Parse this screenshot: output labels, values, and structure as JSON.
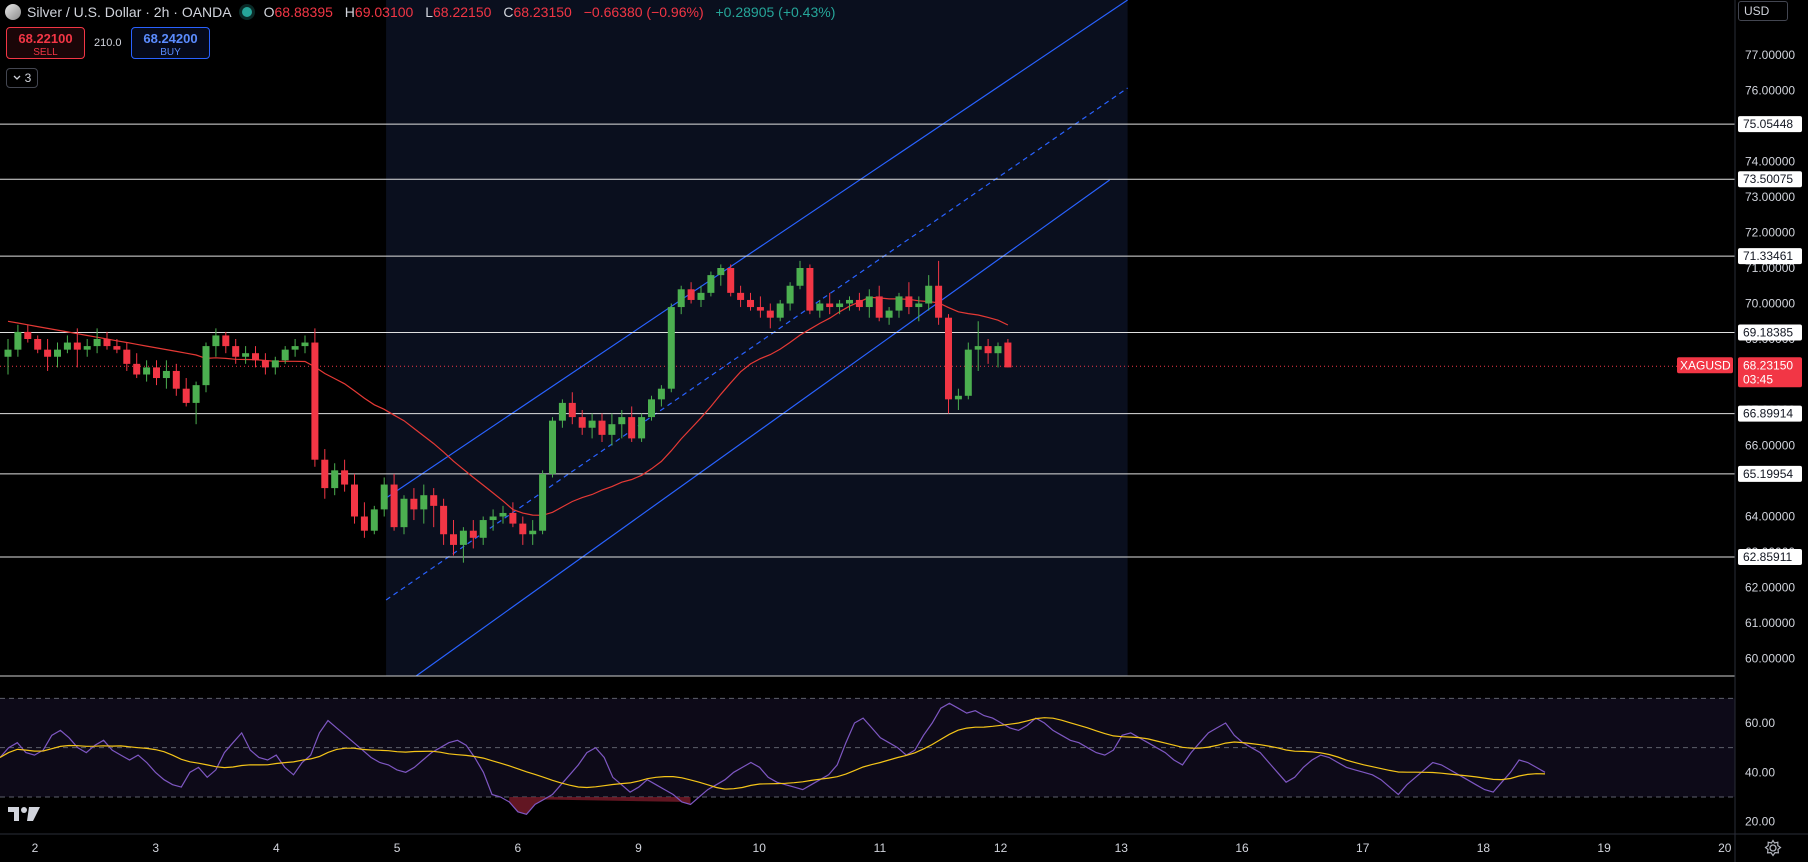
{
  "header": {
    "symbol_title": "Silver / U.S. Dollar · 2h · OANDA",
    "ohlc": {
      "o_label": "O",
      "o": "68.88395",
      "h_label": "H",
      "h": "69.03100",
      "l_label": "L",
      "l": "68.22150",
      "c_label": "C",
      "c": "68.23150",
      "change": "−0.66380 (−0.96%)",
      "ext_change": "+0.28905 (+0.43%)"
    }
  },
  "trade": {
    "sell_price": "68.22100",
    "sell_label": "SELL",
    "buy_price": "68.24200",
    "buy_label": "BUY",
    "spread": "210.0"
  },
  "indicators_toggle": {
    "count": "3"
  },
  "currency": "USD",
  "colors": {
    "up": "#26a69a",
    "candle_up": "#4caf50",
    "down": "#f23645",
    "ma": "#e53935",
    "channel": "#2962ff",
    "rsi": "#7e57c2",
    "rsi_ma": "#f5c518"
  },
  "chart_data": {
    "type": "candlestick",
    "symbol": "XAGUSD",
    "timeframe": "2h",
    "ylim": [
      60,
      77.5
    ],
    "y_ticks": [
      "77.00000",
      "76.00000",
      "75.00000",
      "74.00000",
      "73.00000",
      "72.00000",
      "71.00000",
      "70.00000",
      "69.00000",
      "67.00000",
      "66.00000",
      "64.00000",
      "63.00000",
      "62.00000",
      "61.00000",
      "60.00000"
    ],
    "x_ticks": [
      "2",
      "3",
      "4",
      "5",
      "6",
      "9",
      "10",
      "11",
      "12",
      "13",
      "16",
      "17",
      "18",
      "19",
      "20"
    ],
    "candles": [
      [
        68.5,
        69.0,
        68.0,
        68.7
      ],
      [
        68.7,
        69.4,
        68.5,
        69.2
      ],
      [
        69.2,
        69.4,
        68.9,
        69.0
      ],
      [
        69.0,
        69.1,
        68.6,
        68.7
      ],
      [
        68.7,
        69.0,
        68.1,
        68.5
      ],
      [
        68.5,
        68.9,
        68.2,
        68.7
      ],
      [
        68.7,
        69.1,
        68.6,
        68.9
      ],
      [
        68.9,
        69.3,
        68.2,
        68.7
      ],
      [
        68.7,
        69.0,
        68.5,
        68.8
      ],
      [
        68.8,
        69.3,
        68.6,
        69.0
      ],
      [
        69.0,
        69.2,
        68.7,
        68.8
      ],
      [
        68.8,
        69.0,
        68.6,
        68.7
      ],
      [
        68.7,
        68.9,
        68.1,
        68.3
      ],
      [
        68.3,
        68.6,
        67.9,
        68.0
      ],
      [
        68.0,
        68.4,
        67.8,
        68.2
      ],
      [
        68.2,
        68.4,
        67.7,
        67.9
      ],
      [
        67.9,
        68.4,
        67.6,
        68.1
      ],
      [
        68.1,
        68.3,
        67.4,
        67.6
      ],
      [
        67.6,
        67.9,
        67.1,
        67.2
      ],
      [
        67.2,
        67.8,
        66.6,
        67.7
      ],
      [
        67.7,
        68.9,
        67.5,
        68.8
      ],
      [
        68.8,
        69.3,
        68.5,
        69.1
      ],
      [
        69.1,
        69.2,
        68.6,
        68.8
      ],
      [
        68.8,
        69.0,
        68.3,
        68.5
      ],
      [
        68.5,
        68.8,
        68.3,
        68.6
      ],
      [
        68.6,
        68.8,
        68.2,
        68.4
      ],
      [
        68.4,
        68.6,
        68.0,
        68.2
      ],
      [
        68.2,
        68.5,
        68.0,
        68.4
      ],
      [
        68.4,
        68.8,
        68.3,
        68.7
      ],
      [
        68.7,
        69.0,
        68.5,
        68.8
      ],
      [
        68.8,
        69.1,
        68.6,
        68.9
      ],
      [
        68.9,
        69.3,
        65.4,
        65.6
      ],
      [
        65.6,
        65.9,
        64.5,
        64.8
      ],
      [
        64.8,
        65.5,
        64.6,
        65.3
      ],
      [
        65.3,
        65.6,
        64.7,
        64.9
      ],
      [
        64.9,
        65.2,
        63.8,
        64.0
      ],
      [
        64.0,
        64.4,
        63.4,
        63.6
      ],
      [
        63.6,
        64.3,
        63.5,
        64.2
      ],
      [
        64.2,
        65.1,
        64.0,
        64.9
      ],
      [
        64.9,
        65.2,
        63.6,
        63.7
      ],
      [
        63.7,
        64.6,
        63.5,
        64.5
      ],
      [
        64.5,
        64.8,
        63.9,
        64.2
      ],
      [
        64.2,
        64.9,
        63.8,
        64.6
      ],
      [
        64.6,
        64.8,
        63.7,
        64.3
      ],
      [
        64.3,
        64.5,
        63.2,
        63.5
      ],
      [
        63.5,
        63.9,
        62.9,
        63.2
      ],
      [
        63.2,
        63.7,
        62.7,
        63.6
      ],
      [
        63.6,
        63.9,
        63.1,
        63.4
      ],
      [
        63.4,
        64.0,
        63.2,
        63.9
      ],
      [
        63.9,
        64.2,
        63.6,
        64.0
      ],
      [
        64.0,
        64.3,
        63.8,
        64.1
      ],
      [
        64.1,
        64.4,
        63.7,
        63.8
      ],
      [
        63.8,
        64.0,
        63.2,
        63.5
      ],
      [
        63.5,
        63.9,
        63.2,
        63.6
      ],
      [
        63.6,
        65.3,
        63.5,
        65.2
      ],
      [
        65.2,
        66.8,
        65.1,
        66.7
      ],
      [
        66.7,
        67.3,
        66.5,
        67.2
      ],
      [
        67.2,
        67.5,
        66.6,
        66.8
      ],
      [
        66.8,
        67.0,
        66.3,
        66.5
      ],
      [
        66.5,
        66.9,
        66.2,
        66.7
      ],
      [
        66.7,
        66.9,
        66.1,
        66.3
      ],
      [
        66.3,
        66.9,
        66.0,
        66.6
      ],
      [
        66.6,
        67.0,
        66.2,
        66.8
      ],
      [
        66.8,
        67.1,
        66.1,
        66.2
      ],
      [
        66.2,
        66.9,
        66.1,
        66.8
      ],
      [
        66.8,
        67.4,
        66.7,
        67.3
      ],
      [
        67.3,
        67.7,
        67.1,
        67.6
      ],
      [
        67.6,
        70.0,
        67.5,
        69.9
      ],
      [
        69.9,
        70.5,
        69.7,
        70.4
      ],
      [
        70.4,
        70.6,
        70.0,
        70.1
      ],
      [
        70.1,
        70.5,
        69.9,
        70.3
      ],
      [
        70.3,
        70.9,
        70.2,
        70.8
      ],
      [
        70.8,
        71.1,
        70.5,
        71.0
      ],
      [
        71.0,
        71.1,
        70.2,
        70.3
      ],
      [
        70.3,
        70.5,
        69.9,
        70.1
      ],
      [
        70.1,
        70.3,
        69.8,
        69.9
      ],
      [
        69.9,
        70.2,
        69.6,
        69.8
      ],
      [
        69.8,
        70.0,
        69.3,
        69.6
      ],
      [
        69.6,
        70.1,
        69.5,
        70.0
      ],
      [
        70.0,
        70.6,
        69.8,
        70.5
      ],
      [
        70.5,
        71.2,
        70.4,
        71.0
      ],
      [
        71.0,
        71.1,
        69.7,
        69.8
      ],
      [
        69.8,
        70.1,
        69.6,
        70.0
      ],
      [
        70.0,
        70.3,
        69.7,
        69.9
      ],
      [
        69.9,
        70.1,
        69.7,
        70.0
      ],
      [
        70.0,
        70.2,
        69.8,
        70.1
      ],
      [
        70.1,
        70.3,
        69.8,
        69.9
      ],
      [
        69.9,
        70.4,
        69.6,
        70.2
      ],
      [
        70.2,
        70.5,
        69.5,
        69.6
      ],
      [
        69.6,
        69.9,
        69.4,
        69.8
      ],
      [
        69.8,
        70.3,
        69.6,
        70.2
      ],
      [
        70.2,
        70.6,
        69.7,
        69.9
      ],
      [
        69.9,
        70.2,
        69.5,
        70.0
      ],
      [
        70.0,
        70.8,
        69.8,
        70.5
      ],
      [
        70.5,
        71.2,
        69.4,
        69.6
      ],
      [
        69.6,
        69.7,
        66.9,
        67.3
      ],
      [
        67.3,
        67.6,
        67.0,
        67.4
      ],
      [
        67.4,
        68.9,
        67.3,
        68.7
      ],
      [
        68.7,
        69.5,
        68.1,
        68.8
      ],
      [
        68.8,
        69.0,
        68.3,
        68.6
      ],
      [
        68.6,
        68.9,
        68.2,
        68.8
      ],
      [
        68.9,
        69.0,
        68.2,
        68.2
      ]
    ],
    "horizontal_levels": [
      "75.05448",
      "73.50075",
      "71.33461",
      "69.18385",
      "66.89914",
      "65.19954",
      "62.85911"
    ],
    "last_price": {
      "symbol": "XAGUSD",
      "price": "68.23150",
      "countdown": "03:45"
    },
    "moving_average": {
      "type": "SMA",
      "color": "red"
    },
    "regression_channel": {
      "from_index": 39,
      "to_index": 104
    },
    "rsi": {
      "ylim": [
        15,
        75
      ],
      "levels": [
        30,
        50,
        70
      ],
      "y_ticks": [
        "60.00",
        "40.00",
        "20.00"
      ],
      "values": [
        46,
        50,
        52,
        48,
        47,
        49,
        55,
        57,
        54,
        50,
        48,
        51,
        53,
        49,
        47,
        45,
        47,
        44,
        40,
        37,
        35,
        34,
        40,
        42,
        38,
        41,
        48,
        52,
        56,
        49,
        46,
        45,
        47,
        42,
        39,
        44,
        47,
        56,
        61,
        58,
        55,
        52,
        49,
        46,
        44,
        43,
        41,
        40,
        42,
        45,
        48,
        50,
        52,
        53,
        51,
        46,
        40,
        31,
        30,
        28,
        24,
        23,
        27,
        29,
        31,
        35,
        39,
        43,
        48,
        50,
        46,
        38,
        35,
        32,
        34,
        37,
        35,
        33,
        31,
        28,
        27,
        30,
        33,
        35,
        37,
        40,
        42,
        44,
        42,
        38,
        36,
        35,
        34,
        33,
        35,
        37,
        39,
        43,
        52,
        60,
        62,
        58,
        54,
        52,
        50,
        47,
        49,
        55,
        60,
        66,
        68,
        66,
        64,
        65,
        63,
        62,
        60,
        58,
        57,
        59,
        62,
        60,
        57,
        55,
        53,
        52,
        50,
        48,
        47,
        49,
        55,
        56,
        54,
        52,
        50,
        48,
        45,
        43,
        48,
        52,
        56,
        58,
        60,
        55,
        52,
        50,
        48,
        44,
        40,
        36,
        38,
        42,
        45,
        47,
        46,
        44,
        42,
        41,
        40,
        39,
        37,
        34,
        31,
        35,
        38,
        41,
        44,
        43,
        41,
        39,
        37,
        35,
        33,
        32,
        36,
        40,
        45,
        44,
        42,
        40
      ]
    }
  }
}
